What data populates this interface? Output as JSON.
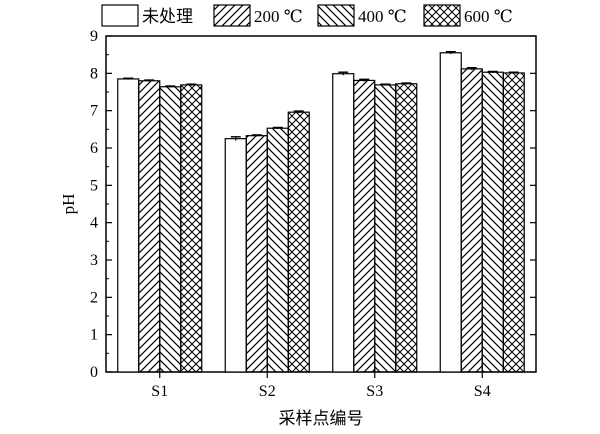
{
  "chart_data": {
    "type": "bar",
    "categories": [
      "S1",
      "S2",
      "S3",
      "S4"
    ],
    "series": [
      {
        "name": "未处理",
        "pattern": "blank",
        "values": [
          7.85,
          6.25,
          7.99,
          8.55
        ],
        "errors": [
          0.02,
          0.05,
          0.04,
          0.03
        ]
      },
      {
        "name": "200 ℃",
        "pattern": "diagonal-forward",
        "values": [
          7.8,
          6.33,
          7.81,
          8.12
        ],
        "errors": [
          0.02,
          0.02,
          0.03,
          0.03
        ]
      },
      {
        "name": "400 ℃",
        "pattern": "diagonal-backward",
        "values": [
          7.64,
          6.53,
          7.69,
          8.03
        ],
        "errors": [
          0.02,
          0.02,
          0.02,
          0.02
        ]
      },
      {
        "name": "600 ℃",
        "pattern": "crosshatch",
        "values": [
          7.69,
          6.96,
          7.72,
          8.01
        ],
        "errors": [
          0.02,
          0.03,
          0.02,
          0.02
        ]
      }
    ],
    "xlabel": "采样点编号",
    "ylabel": "pH",
    "ylim": [
      0,
      9
    ],
    "yticks": [
      0,
      1,
      2,
      3,
      4,
      5,
      6,
      7,
      8,
      9
    ],
    "grid": false,
    "legend_position": "top"
  },
  "colors": {
    "bar_fill": "#ffffff",
    "stroke": "#000000"
  }
}
